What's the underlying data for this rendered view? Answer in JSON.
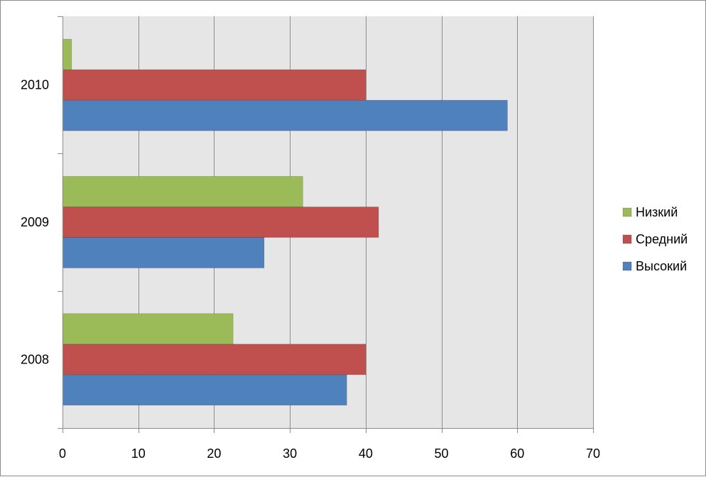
{
  "chart_data": {
    "type": "bar",
    "orientation": "horizontal",
    "categories": [
      "2008",
      "2009",
      "2010"
    ],
    "series": [
      {
        "name": "Высокий",
        "values": [
          37.5,
          26.6,
          58.7
        ],
        "color": "#4f81bd"
      },
      {
        "name": "Средний",
        "values": [
          40.0,
          41.7,
          40.0
        ],
        "color": "#c0504d"
      },
      {
        "name": "Низкий",
        "values": [
          22.5,
          31.7,
          1.2
        ],
        "color": "#9bbb59"
      }
    ],
    "xlim": [
      0,
      70
    ],
    "x_ticks": [
      0,
      10,
      20,
      30,
      40,
      50,
      60,
      70
    ],
    "grid": true,
    "legend_position": "right",
    "legend_order": [
      "Низкий",
      "Средний",
      "Высокий"
    ],
    "plot_background": "#e6e6e6"
  }
}
